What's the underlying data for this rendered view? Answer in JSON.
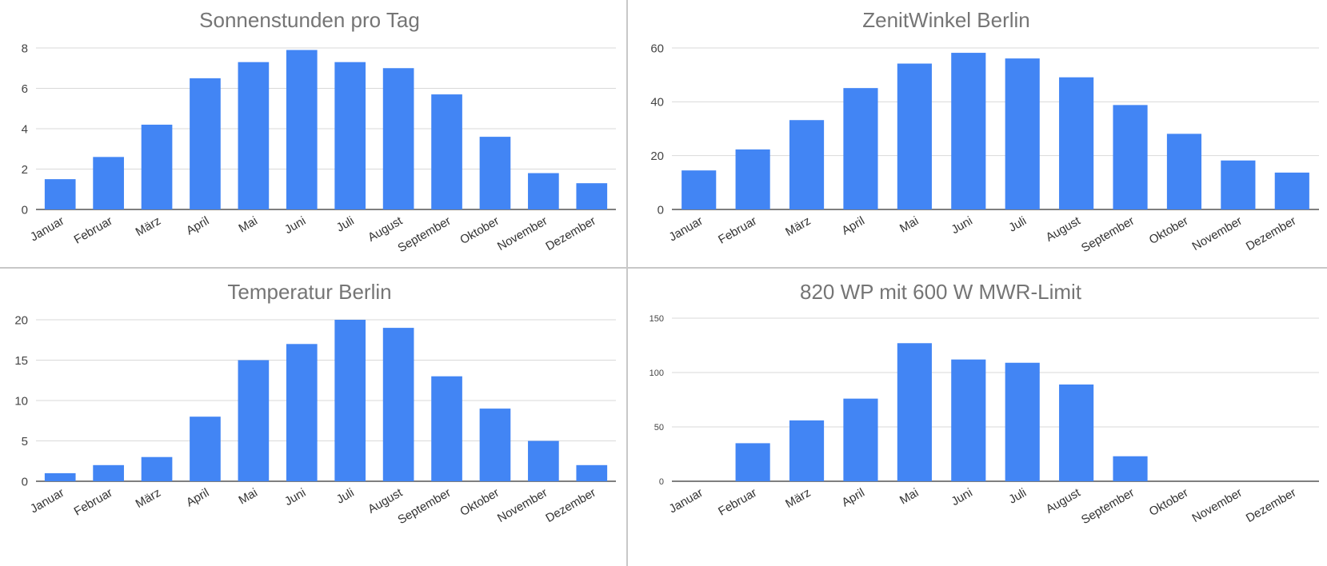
{
  "chart_data": [
    {
      "type": "bar",
      "title": "Sonnenstunden pro Tag",
      "xlabel": "",
      "ylabel": "",
      "categories": [
        "Januar",
        "Februar",
        "März",
        "April",
        "Mai",
        "Juni",
        "Juli",
        "August",
        "September",
        "Oktober",
        "November",
        "Dezember"
      ],
      "values": [
        1.5,
        2.6,
        4.2,
        6.5,
        7.3,
        7.9,
        7.3,
        7.0,
        5.7,
        3.6,
        1.8,
        1.3
      ],
      "ylim": [
        0,
        8
      ],
      "yticks": [
        0,
        2,
        4,
        6,
        8
      ],
      "grid": true,
      "legend": "none",
      "color": "#4285f4"
    },
    {
      "type": "bar",
      "title": "ZenitWinkel Berlin",
      "xlabel": "",
      "ylabel": "",
      "categories": [
        "Januar",
        "Februar",
        "März",
        "April",
        "Mai",
        "Juni",
        "Juli",
        "August",
        "September",
        "Oktober",
        "November",
        "Dezember"
      ],
      "values": [
        14.5,
        22.3,
        33.2,
        45.1,
        54.2,
        58.2,
        56.1,
        49.1,
        38.8,
        28.1,
        18.2,
        13.7
      ],
      "ylim": [
        0,
        60
      ],
      "yticks": [
        0,
        20,
        40,
        60
      ],
      "grid": true,
      "legend": "none",
      "color": "#4285f4"
    },
    {
      "type": "bar",
      "title": "Temperatur Berlin",
      "xlabel": "",
      "ylabel": "",
      "categories": [
        "Januar",
        "Februar",
        "März",
        "April",
        "Mai",
        "Juni",
        "Juli",
        "August",
        "September",
        "Oktober",
        "November",
        "Dezember"
      ],
      "values": [
        1,
        2,
        3,
        8,
        15,
        17,
        20,
        19,
        13,
        9,
        5,
        2
      ],
      "ylim": [
        0,
        20
      ],
      "yticks": [
        0,
        5,
        10,
        15,
        20
      ],
      "grid": true,
      "legend": "none",
      "color": "#4285f4"
    },
    {
      "type": "bar",
      "title": "820 WP mit 600 W MWR-Limit",
      "xlabel": "",
      "ylabel": "",
      "categories": [
        "Januar",
        "Februar",
        "März",
        "April",
        "Mai",
        "Juni",
        "Juli",
        "August",
        "September",
        "Oktober",
        "November",
        "Dezember"
      ],
      "values": [
        0,
        35,
        56,
        76,
        127,
        112,
        109,
        89,
        23,
        0,
        0,
        0
      ],
      "ylim": [
        0,
        150
      ],
      "yticks": [
        0,
        50,
        100,
        150
      ],
      "grid": true,
      "legend": "none",
      "color": "#4285f4"
    }
  ]
}
